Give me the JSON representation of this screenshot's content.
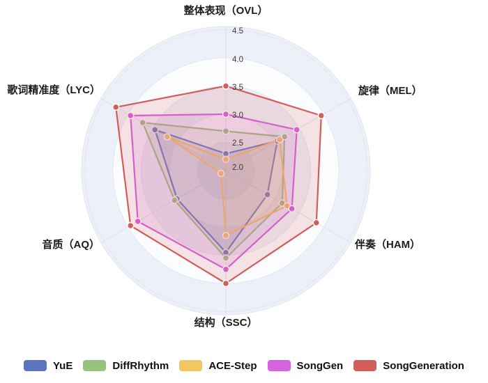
{
  "chart_data": {
    "type": "radar",
    "title": "",
    "grid": "circular, alternating ring fills, 6 spokes",
    "legend_position": "bottom",
    "rmin": 2.0,
    "rmax": 4.5,
    "radial_ticks": [
      "2.0",
      "2.5",
      "3.0",
      "3.5",
      "4.0",
      "4.5"
    ],
    "axes": [
      {
        "key": "OVL",
        "label": "整体表现（OVL）"
      },
      {
        "key": "MEL",
        "label": "旋律（MEL）"
      },
      {
        "key": "HAM",
        "label": "伴奏（HAM）"
      },
      {
        "key": "SSC",
        "label": "结构（SSC）"
      },
      {
        "key": "AQ",
        "label": "音质（AQ）"
      },
      {
        "key": "LYC",
        "label": "歌词精准度（LYC）"
      }
    ],
    "series": [
      {
        "name": "YuE",
        "color": "#5C73BF",
        "values": [
          2.3,
          3.05,
          2.85,
          3.45,
          3.0,
          3.45
        ]
      },
      {
        "name": "DiffRhythm",
        "color": "#98C37F",
        "values": [
          2.7,
          3.2,
          3.15,
          3.55,
          3.05,
          3.7
        ]
      },
      {
        "name": "ACE-Step",
        "color": "#F3C65F",
        "values": [
          2.2,
          3.1,
          3.25,
          3.15,
          2.1,
          3.2
        ]
      },
      {
        "name": "SongGen",
        "color": "#D662DD",
        "values": [
          3.0,
          3.45,
          3.35,
          3.75,
          3.8,
          3.95
        ]
      },
      {
        "name": "SongGeneration",
        "color": "#D45D5B",
        "values": [
          3.5,
          3.95,
          3.85,
          4.0,
          3.95,
          4.25
        ]
      }
    ],
    "style_colors": {
      "ring_fill_a": "#edf0f8",
      "ring_fill_b": "#fbfcfe",
      "grid_stroke": "#e2e6ef",
      "spoke_stroke": "#dde1ea"
    }
  }
}
